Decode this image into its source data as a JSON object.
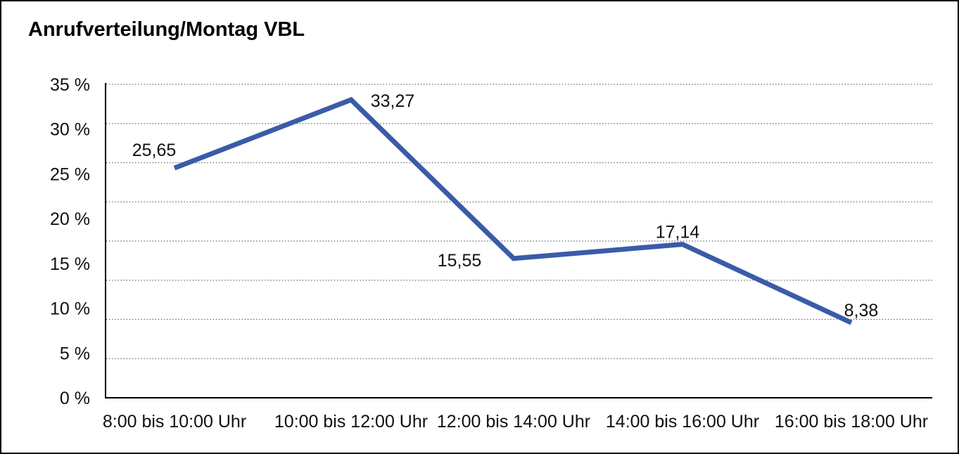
{
  "title": "Anrufverteilung/Montag VBL",
  "chart_data": {
    "type": "line",
    "title": "Anrufverteilung/Montag VBL",
    "categories": [
      "8:00 bis 10:00 Uhr",
      "10:00 bis 12:00 Uhr",
      "12:00 bis 14:00 Uhr",
      "14:00 bis 16:00 Uhr",
      "16:00 bis 18:00 Uhr"
    ],
    "values": [
      25.65,
      33.27,
      15.55,
      17.14,
      8.38
    ],
    "point_labels": [
      "25,65",
      "33,27",
      "15,55",
      "17,14",
      "8,38"
    ],
    "xlabel": "",
    "ylabel": "",
    "ylim": [
      0,
      35
    ],
    "ytick_labels": [
      "35 %",
      "30 %",
      "25 %",
      "20 %",
      "15 %",
      "10 %",
      "5 %",
      "0 %"
    ],
    "ytick_values": [
      35,
      30,
      25,
      20,
      15,
      10,
      5,
      0
    ],
    "grid": "horizontal-dotted",
    "dotted_gridline_count": 8,
    "legend": "none",
    "line_color": "#3A5BA8",
    "axis_color": "#000000",
    "gridline_color": "#555555",
    "text_color": "#111111",
    "background_color": "#ffffff"
  }
}
